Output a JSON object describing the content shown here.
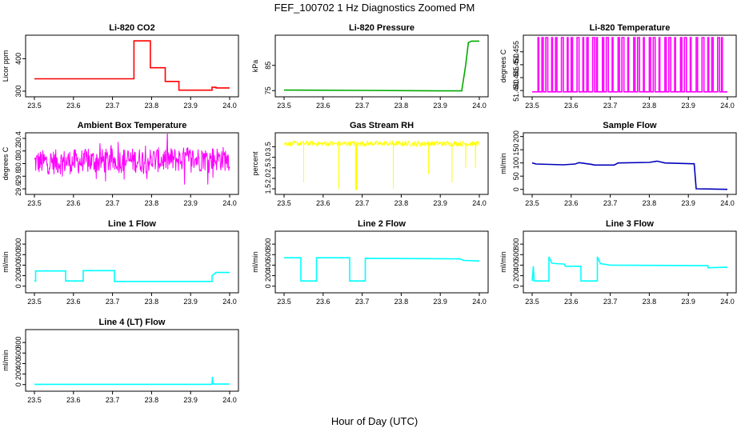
{
  "figure": {
    "title": "FEF_100702  1 Hz Diagnostics Zoomed PM",
    "xlabel": "Hour of Day (UTC)"
  },
  "chart_data": [
    {
      "type": "line",
      "title": "Li-820 CO2",
      "ylabel": "Licor ppm",
      "color": "#ff0000",
      "xlim": [
        23.5,
        24.0
      ],
      "ylim": [
        290,
        465
      ],
      "x_ticks": [
        "23.5",
        "23.6",
        "23.7",
        "23.8",
        "23.9",
        "24.0"
      ],
      "y_ticks": [
        300,
        400
      ],
      "series": [
        {
          "name": "CO2",
          "x": [
            23.5,
            23.755,
            23.755,
            23.797,
            23.797,
            23.835,
            23.835,
            23.87,
            23.87,
            23.955,
            23.955,
            23.965,
            23.965,
            24.0
          ],
          "y": [
            338,
            338,
            455,
            455,
            372,
            372,
            330,
            330,
            303,
            303,
            312,
            312,
            310,
            310
          ]
        }
      ]
    },
    {
      "type": "line",
      "title": "Li-820 Pressure",
      "ylabel": "kPa",
      "color": "#00aa00",
      "xlim": [
        23.5,
        24.0
      ],
      "ylim": [
        73.5,
        96
      ],
      "x_ticks": [
        "23.5",
        "23.6",
        "23.7",
        "23.8",
        "23.9",
        "24.0"
      ],
      "y_ticks": [
        75,
        85
      ],
      "series": [
        {
          "name": "Pressure",
          "x": [
            23.5,
            23.7,
            23.9,
            23.955,
            23.965,
            23.972,
            23.98,
            24.0
          ],
          "y": [
            75.2,
            75.1,
            74.9,
            74.9,
            85,
            94,
            94.6,
            94.6
          ]
        }
      ]
    },
    {
      "type": "line",
      "title": "Li-820 Temperature",
      "ylabel": "degrees C",
      "color": "#ff00ff",
      "xlim": [
        23.5,
        24.0
      ],
      "ylim": [
        51.4385,
        51.4605
      ],
      "x_ticks": [
        "23.5",
        "23.6",
        "23.7",
        "23.8",
        "23.9",
        "24.0"
      ],
      "y_ticks": [
        51.44,
        51.445,
        51.45,
        51.455
      ],
      "y_tick_labels": [
        "51.440",
        "51.445",
        "51.450",
        "51.455"
      ],
      "series": [
        {
          "name": "Temperature",
          "jumps": [
            23.515,
            23.525,
            23.535,
            23.55,
            23.56,
            23.575,
            23.59,
            23.6,
            23.615,
            23.63,
            23.64,
            23.655,
            23.665,
            23.68,
            23.69,
            23.705,
            23.72,
            23.73,
            23.745,
            23.76,
            23.77,
            23.785,
            23.8,
            23.81,
            23.825,
            23.84,
            23.85,
            23.865,
            23.88,
            23.89,
            23.905,
            23.92,
            23.935,
            23.95,
            23.96,
            23.975,
            23.985
          ],
          "low": 51.4395,
          "high": 51.4605
        }
      ]
    },
    {
      "type": "line",
      "title": "Ambient Box Temperature",
      "ylabel": "degrees C",
      "color": "#ff00ff",
      "xlim": [
        23.5,
        24.0
      ],
      "ylim": [
        29.55,
        30.45
      ],
      "x_ticks": [
        "23.5",
        "23.6",
        "23.7",
        "23.8",
        "23.9",
        "24.0"
      ],
      "y_ticks": [
        29.6,
        29.8,
        30.0,
        30.2,
        30.4
      ],
      "y_tick_labels": [
        "29.6",
        "29.8",
        "30.0",
        "30.2",
        "30.4"
      ],
      "series": [
        {
          "name": "Ambient",
          "noise": {
            "baseline": 30.02,
            "amplitude": 0.2,
            "trend": 0.06,
            "spikes": 0.12
          }
        }
      ]
    },
    {
      "type": "line",
      "title": "Gas Stream RH",
      "ylabel": "percent",
      "color": "#ffff00",
      "xlim": [
        23.5,
        24.0
      ],
      "ylim": [
        1.35,
        4.05
      ],
      "x_ticks": [
        "23.5",
        "23.6",
        "23.7",
        "23.8",
        "23.9",
        "24.0"
      ],
      "y_ticks": [
        1.5,
        2.0,
        2.5,
        3.0,
        3.5
      ],
      "y_tick_labels": [
        "1.5",
        "2.0",
        "2.5",
        "3.0",
        "3.5"
      ],
      "series": [
        {
          "name": "RH",
          "noise": {
            "baseline": 3.65,
            "amplitude": 0.12
          },
          "dips": [
            [
              23.55,
              1.8
            ],
            [
              23.64,
              1.5
            ],
            [
              23.683,
              1.45
            ],
            [
              23.685,
              1.45
            ],
            [
              23.687,
              1.45
            ],
            [
              23.78,
              1.5
            ],
            [
              23.87,
              2.2
            ],
            [
              23.93,
              1.8
            ],
            [
              23.965,
              2.5
            ],
            [
              23.99,
              2.5
            ]
          ]
        }
      ]
    },
    {
      "type": "line",
      "title": "Sample Flow",
      "ylabel": "ml/min",
      "color": "#0000bb",
      "xlim": [
        23.5,
        24.0
      ],
      "ylim": [
        -10,
        205
      ],
      "x_ticks": [
        "23.5",
        "23.6",
        "23.7",
        "23.8",
        "23.9",
        "24.0"
      ],
      "y_ticks": [
        0,
        50,
        100,
        150,
        200
      ],
      "series": [
        {
          "name": "Sample",
          "x": [
            23.5,
            23.51,
            23.58,
            23.61,
            23.62,
            23.65,
            23.66,
            23.71,
            23.72,
            23.8,
            23.82,
            23.84,
            23.91,
            23.915,
            23.92,
            24.0
          ],
          "y": [
            100,
            96,
            93,
            96,
            101,
            95,
            92,
            92,
            100,
            102,
            107,
            100,
            97,
            97,
            2,
            0
          ]
        }
      ]
    },
    {
      "type": "line",
      "title": "Line 1 Flow",
      "ylabel": "ml/min",
      "color": "#00ffff",
      "xlim": [
        23.5,
        24.0
      ],
      "ylim": [
        -80,
        1000
      ],
      "x_ticks": [
        "23.5",
        "23.6",
        "23.7",
        "23.8",
        "23.9",
        "24.0"
      ],
      "y_ticks": [
        0,
        200,
        400,
        600,
        800
      ],
      "series": [
        {
          "name": "Line 1",
          "x": [
            23.5,
            23.503,
            23.503,
            23.58,
            23.58,
            23.625,
            23.625,
            23.705,
            23.705,
            23.955,
            23.955,
            23.965,
            24.0
          ],
          "y": [
            100,
            100,
            290,
            290,
            100,
            100,
            295,
            295,
            90,
            90,
            200,
            260,
            260
          ]
        }
      ]
    },
    {
      "type": "line",
      "title": "Line 2 Flow",
      "ylabel": "ml/min",
      "color": "#00ffff",
      "xlim": [
        23.5,
        24.0
      ],
      "ylim": [
        -80,
        1000
      ],
      "x_ticks": [
        "23.5",
        "23.6",
        "23.7",
        "23.8",
        "23.9",
        "24.0"
      ],
      "y_ticks": [
        0,
        200,
        400,
        600,
        800
      ],
      "series": [
        {
          "name": "Line 2",
          "x": [
            23.5,
            23.543,
            23.543,
            23.583,
            23.583,
            23.668,
            23.668,
            23.708,
            23.708,
            23.95,
            23.96,
            24.0
          ],
          "y": [
            540,
            540,
            100,
            100,
            540,
            540,
            100,
            100,
            530,
            520,
            490,
            480
          ]
        }
      ]
    },
    {
      "type": "line",
      "title": "Line 3 Flow",
      "ylabel": "ml/min",
      "color": "#00ffff",
      "xlim": [
        23.5,
        24.0
      ],
      "ylim": [
        -80,
        1000
      ],
      "x_ticks": [
        "23.5",
        "23.6",
        "23.7",
        "23.8",
        "23.9",
        "24.0"
      ],
      "y_ticks": [
        0,
        200,
        400,
        600,
        800
      ],
      "series": [
        {
          "name": "Line 3",
          "x": [
            23.5,
            23.503,
            23.505,
            23.543,
            23.543,
            23.55,
            23.56,
            23.583,
            23.585,
            23.625,
            23.625,
            23.667,
            23.667,
            23.675,
            23.7,
            23.95,
            23.95,
            24.0
          ],
          "y": [
            100,
            380,
            100,
            100,
            560,
            440,
            430,
            420,
            380,
            380,
            100,
            100,
            560,
            430,
            400,
            390,
            350,
            360
          ]
        }
      ]
    },
    {
      "type": "line",
      "title": "Line 4 (LT) Flow",
      "ylabel": "ml/min",
      "color": "#00ffff",
      "xlim": [
        23.5,
        24.0
      ],
      "ylim": [
        -80,
        1000
      ],
      "x_ticks": [
        "23.5",
        "23.6",
        "23.7",
        "23.8",
        "23.9",
        "24.0"
      ],
      "y_ticks": [
        0,
        200,
        400,
        600,
        800
      ],
      "series": [
        {
          "name": "Line 4",
          "x": [
            23.5,
            23.955,
            23.956,
            23.957,
            23.96,
            24.0
          ],
          "y": [
            5,
            5,
            150,
            30,
            10,
            10
          ]
        }
      ]
    }
  ]
}
